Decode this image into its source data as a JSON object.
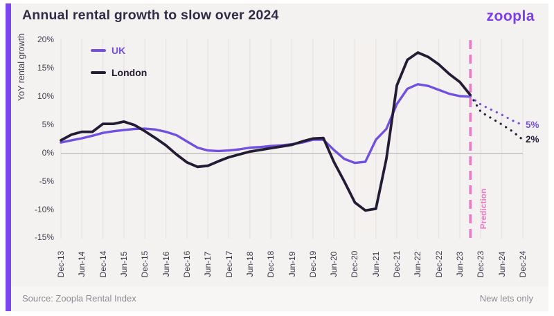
{
  "header": {
    "title": "Annual rental growth to slow over 2024",
    "logo_text": "zoopla"
  },
  "theme": {
    "uk_purple": "#7150DF",
    "london_dark": "#241C34",
    "prediction_pink": "#EE7BC4",
    "accent_purple": "#7B46F0",
    "card_background": "#F4F2F1",
    "gridline": "#E5E2E0",
    "zero_line": "#BFBBB9"
  },
  "legend": [
    {
      "label": "UK",
      "color": "#7150DF"
    },
    {
      "label": "London",
      "color": "#241C34"
    }
  ],
  "chart_data": {
    "type": "line",
    "title": "Annual rental growth to slow over 2024",
    "ylabel": "YoY rental growth",
    "ylim": [
      -15,
      20
    ],
    "y_ticks": [
      20,
      15,
      10,
      5,
      0,
      -5,
      -10,
      -15
    ],
    "y_tick_suffix": "%",
    "x_tick_labels": [
      "Dec-13",
      "Jun-14",
      "Dec-14",
      "Jun-15",
      "Dec-15",
      "Jun-16",
      "Dec-16",
      "Jun-17",
      "Dec-17",
      "Jun-18",
      "Dec-18",
      "Jun-19",
      "Dec-19",
      "Jun-20",
      "Dec-20",
      "Jun-21",
      "Dec-21",
      "Jun-22",
      "Dec-22",
      "Jun-23",
      "Dec-23",
      "Jun-24",
      "Dec-24"
    ],
    "x_months_total": 132,
    "grid": "vertical-only",
    "legend_position": "top-left-inside",
    "prediction_boundary_month": 117,
    "series": [
      {
        "name": "UK",
        "color": "#7150DF",
        "style": "solid",
        "start_month": 0,
        "step_months": 3,
        "values": [
          1.9,
          2.3,
          2.65,
          3.1,
          3.6,
          3.9,
          4.1,
          4.3,
          4.35,
          4.2,
          3.8,
          3.2,
          2.1,
          1.0,
          0.5,
          0.4,
          0.5,
          0.7,
          1.0,
          1.1,
          1.3,
          1.4,
          1.6,
          1.9,
          2.4,
          2.4,
          0.6,
          -1.0,
          -1.7,
          -1.5,
          2.4,
          4.3,
          8.7,
          11.4,
          12.2,
          11.9,
          11.2,
          10.5,
          10.1,
          10.0
        ]
      },
      {
        "name": "London",
        "color": "#241C34",
        "style": "solid",
        "start_month": 0,
        "step_months": 3,
        "values": [
          2.3,
          3.3,
          3.8,
          3.8,
          5.2,
          5.2,
          5.6,
          5.0,
          3.9,
          2.7,
          1.4,
          -0.2,
          -1.6,
          -2.4,
          -2.2,
          -1.4,
          -0.7,
          -0.2,
          0.3,
          0.6,
          0.9,
          1.2,
          1.5,
          2.1,
          2.6,
          2.7,
          -1.5,
          -5.0,
          -8.7,
          -10.1,
          -9.8,
          -1.0,
          12.0,
          16.5,
          17.8,
          17.0,
          15.7,
          14.0,
          12.6,
          10.3
        ]
      },
      {
        "name": "UK prediction",
        "color": "#7150DF",
        "style": "dotted",
        "start_month": 117,
        "step_months": 3,
        "values": [
          10.0,
          8.6,
          7.7,
          6.8,
          5.8,
          5.0
        ]
      },
      {
        "name": "London prediction",
        "color": "#241C34",
        "style": "dotted",
        "start_month": 117,
        "step_months": 3,
        "values": [
          10.3,
          7.3,
          6.2,
          5.1,
          3.9,
          2.4
        ]
      }
    ],
    "annotations": {
      "prediction_label": "Prediction",
      "uk_end_label": "5%",
      "london_end_label": "2%"
    }
  },
  "footer": {
    "source": "Source: Zoopla Rental Index",
    "note": "New lets only"
  }
}
